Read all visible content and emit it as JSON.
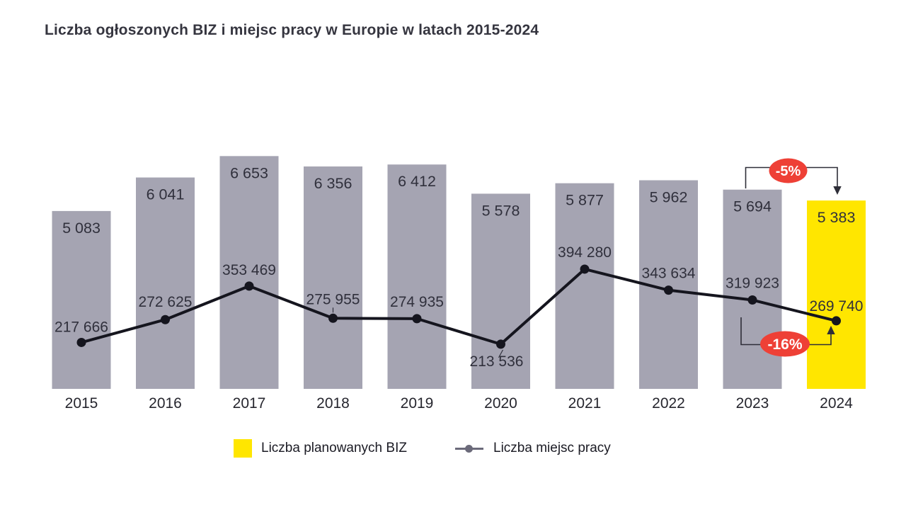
{
  "title": "Liczba ogłoszonych BIZ i miejsc pracy w Europie w latach 2015-2024",
  "legend": {
    "bar_label": "Liczba planowanych BIZ",
    "line_label": "Liczba miejsc pracy"
  },
  "chart_data": {
    "type": "bar+line",
    "title": "Liczba ogłoszonych BIZ i miejsc pracy w Europie w latach 2015-2024",
    "categories": [
      "2015",
      "2016",
      "2017",
      "2018",
      "2019",
      "2020",
      "2021",
      "2022",
      "2023",
      "2024"
    ],
    "series": [
      {
        "name": "Liczba planowanych BIZ",
        "type": "bar",
        "values": [
          5083,
          6041,
          6653,
          6356,
          6412,
          5578,
          5877,
          5962,
          5694,
          5383
        ],
        "labels": [
          "5 083",
          "6 041",
          "6 653",
          "6 356",
          "6 412",
          "5 578",
          "5 877",
          "5 962",
          "5 694",
          "5 383"
        ],
        "highlight_index": 9
      },
      {
        "name": "Liczba miejsc pracy",
        "type": "line",
        "values": [
          217666,
          272625,
          353469,
          275955,
          274935,
          213536,
          394280,
          343634,
          319923,
          269740
        ],
        "labels": [
          "217 666",
          "272 625",
          "353 469",
          "275 955",
          "274 935",
          "213 536",
          "394 280",
          "343 634",
          "319 923",
          "269 740"
        ]
      }
    ],
    "annotations": [
      {
        "label": "-5%",
        "from": "2023",
        "to": "2024",
        "target": "bar"
      },
      {
        "label": "-16%",
        "from": "2023",
        "to": "2024",
        "target": "line"
      }
    ],
    "legend_position": "bottom",
    "grid": false,
    "axes_visible": false,
    "colors": {
      "bar_default": "#a5a4b2",
      "bar_highlight": "#ffe600",
      "line": "#15151e",
      "annotation_badge": "#ee4036",
      "annotation_text": "#ffffff",
      "connector": "#2e2e38",
      "data_label": "#30303c",
      "axis_label": "#26262e"
    }
  }
}
